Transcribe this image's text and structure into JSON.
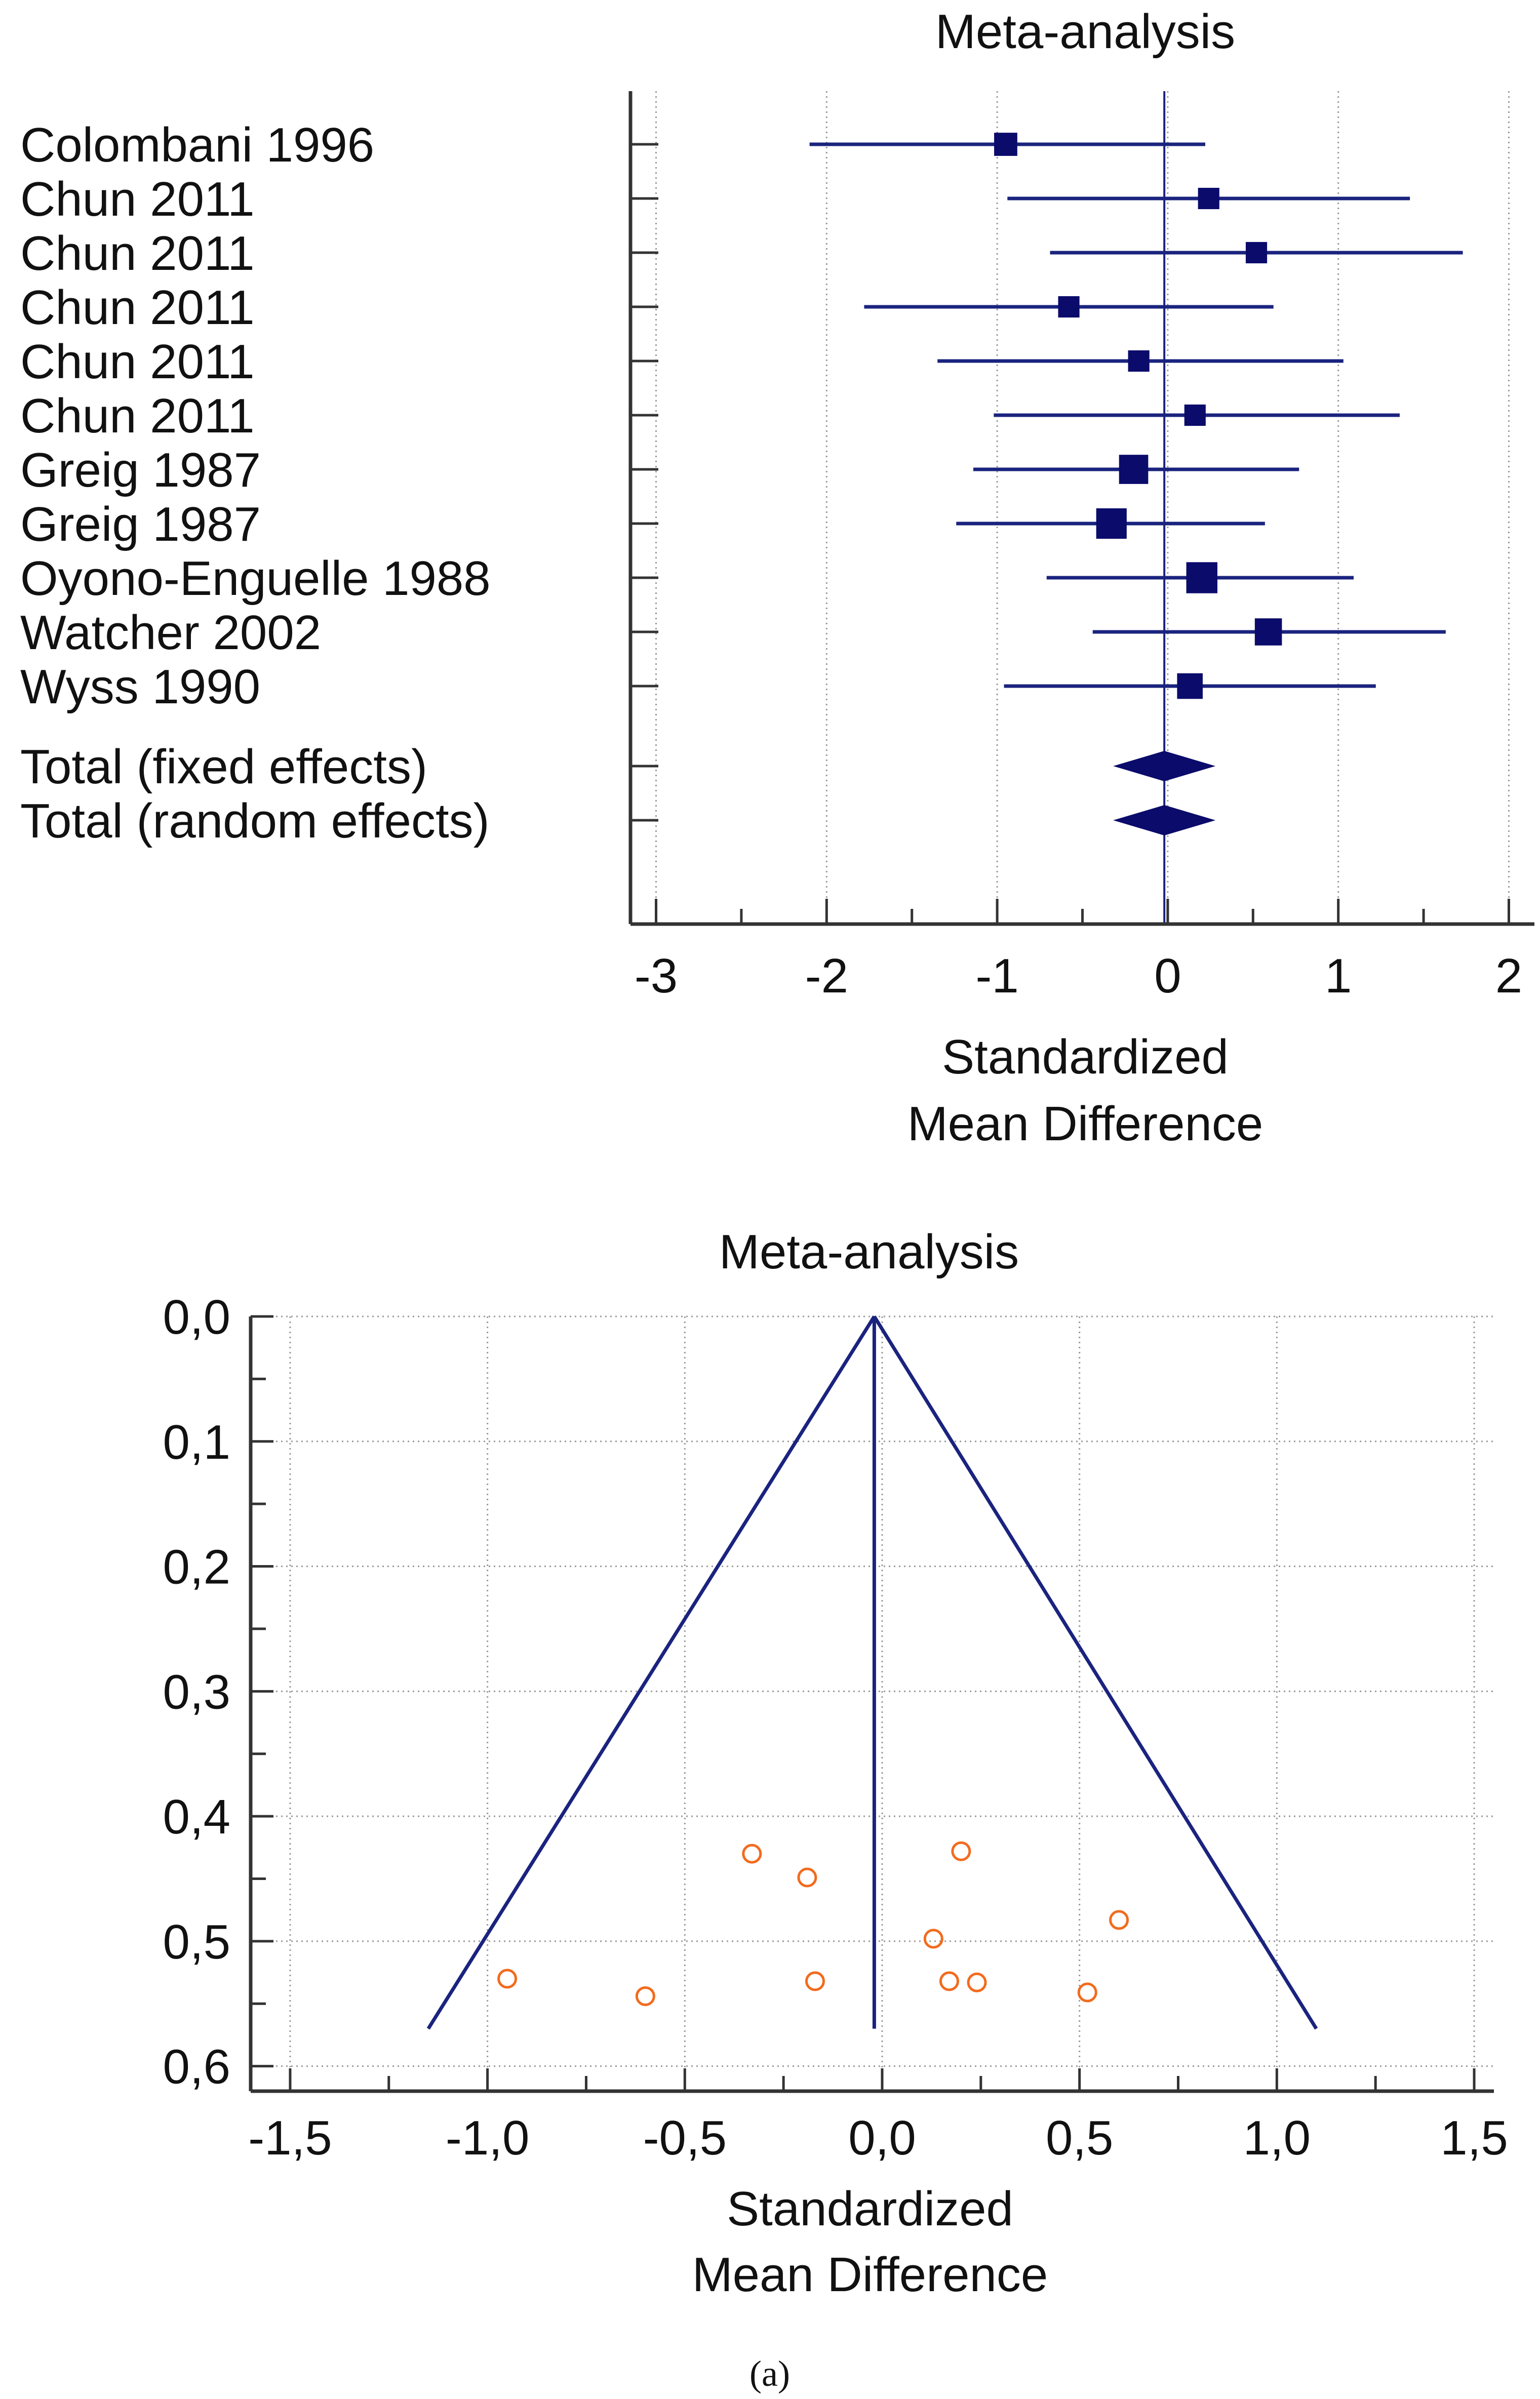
{
  "caption": "(a)",
  "colors": {
    "series": "#1a237e",
    "marker_dark": "#0b0b6b",
    "funnel_point": "#f26b1d",
    "grid": "#9a9a9a",
    "axis": "#333333"
  },
  "chart_data": [
    {
      "type": "forest",
      "title": "Meta-analysis",
      "xlabel_lines": [
        "Standardized",
        "Mean Difference"
      ],
      "xlim": [
        -3.15,
        2.15
      ],
      "xticks": [
        -3,
        -2,
        -1,
        0,
        1,
        2
      ],
      "xtick_labels": [
        "-3",
        "-2",
        "-1",
        "0",
        "1",
        "2"
      ],
      "grid": true,
      "studies": [
        {
          "label": "Colombani 1996",
          "effect": -0.95,
          "ci": [
            -2.1,
            0.22
          ],
          "weight": 1.1
        },
        {
          "label": "Chun 2011",
          "effect": 0.24,
          "ci": [
            -0.94,
            1.42
          ],
          "weight": 0.9
        },
        {
          "label": "Chun 2011",
          "effect": 0.52,
          "ci": [
            -0.69,
            1.73
          ],
          "weight": 0.9
        },
        {
          "label": "Chun 2011",
          "effect": -0.58,
          "ci": [
            -1.78,
            0.62
          ],
          "weight": 0.9
        },
        {
          "label": "Chun 2011",
          "effect": -0.17,
          "ci": [
            -1.35,
            1.03
          ],
          "weight": 0.9
        },
        {
          "label": "Chun 2011",
          "effect": 0.16,
          "ci": [
            -1.02,
            1.36
          ],
          "weight": 0.9
        },
        {
          "label": "Greig 1987",
          "effect": -0.2,
          "ci": [
            -1.14,
            0.77
          ],
          "weight": 1.9
        },
        {
          "label": "Greig 1987",
          "effect": -0.33,
          "ci": [
            -1.24,
            0.57
          ],
          "weight": 2.1
        },
        {
          "label": "Oyono-Enguelle 1988",
          "effect": 0.2,
          "ci": [
            -0.71,
            1.09
          ],
          "weight": 2.2
        },
        {
          "label": "Watcher 2002",
          "effect": 0.59,
          "ci": [
            -0.44,
            1.63
          ],
          "weight": 1.6
        },
        {
          "label": "Wyss 1990",
          "effect": 0.13,
          "ci": [
            -0.96,
            1.22
          ],
          "weight": 1.4
        }
      ],
      "totals": [
        {
          "label": "Total (fixed effects)",
          "effect": -0.02,
          "ci": [
            -0.32,
            0.28
          ]
        },
        {
          "label": "Total (random effects)",
          "effect": -0.02,
          "ci": [
            -0.32,
            0.28
          ]
        }
      ]
    },
    {
      "type": "scatter",
      "subtype": "funnel",
      "title": "Meta-analysis",
      "xlabel_lines": [
        "Standardized",
        "Mean Difference"
      ],
      "xlim": [
        -1.6,
        1.55
      ],
      "ylim": [
        0.0,
        0.62
      ],
      "y_inverted": true,
      "xticks": [
        -1.5,
        -1.0,
        -0.5,
        0.0,
        0.5,
        1.0,
        1.5
      ],
      "xtick_labels": [
        "-1,5",
        "-1,0",
        "-0,5",
        "0,0",
        "0,5",
        "1,0",
        "1,5"
      ],
      "yticks": [
        0.0,
        0.1,
        0.2,
        0.3,
        0.4,
        0.5,
        0.6
      ],
      "ytick_labels": [
        "0,0",
        "0,1",
        "0,2",
        "0,3",
        "0,4",
        "0,5",
        "0,6"
      ],
      "grid": true,
      "funnel": {
        "center": -0.02,
        "apex_se": 0.0,
        "base_se": 0.57,
        "left_x": -1.15,
        "right_x": 1.1
      },
      "points": [
        {
          "x": -0.33,
          "y": 0.43
        },
        {
          "x": -0.19,
          "y": 0.449
        },
        {
          "x": 0.2,
          "y": 0.428
        },
        {
          "x": 0.6,
          "y": 0.483
        },
        {
          "x": 0.13,
          "y": 0.498
        },
        {
          "x": -0.95,
          "y": 0.53
        },
        {
          "x": -0.6,
          "y": 0.544
        },
        {
          "x": -0.17,
          "y": 0.532
        },
        {
          "x": 0.17,
          "y": 0.532
        },
        {
          "x": 0.24,
          "y": 0.533
        },
        {
          "x": 0.52,
          "y": 0.541
        }
      ]
    }
  ]
}
